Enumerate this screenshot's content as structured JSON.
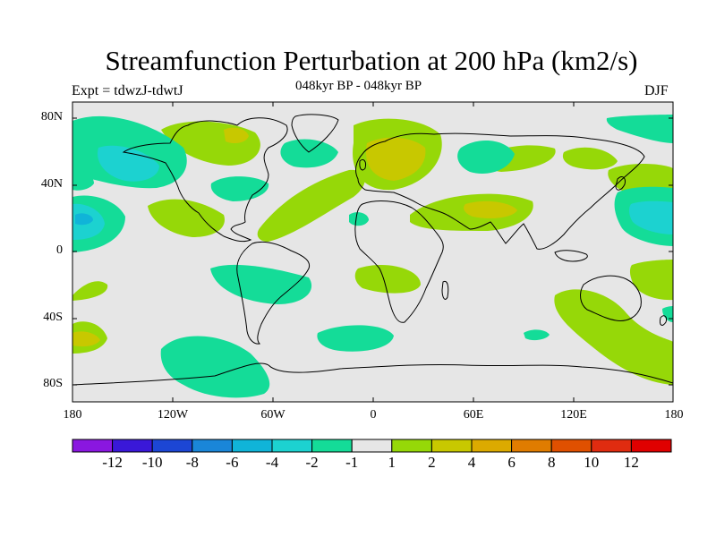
{
  "title": "Streamfunction Perturbation at 200 hPa (km2/s)",
  "experiment": "Expt = tdwzJ-tdwtJ",
  "subtitle": "048kyr BP - 048kyr BP",
  "season": "DJF",
  "lat_labels": [
    "80N",
    "40N",
    "0",
    "40S",
    "80S"
  ],
  "lon_labels": [
    "180",
    "120W",
    "60W",
    "0",
    "60E",
    "120E",
    "180"
  ],
  "colorbar": {
    "labels": [
      "-12",
      "-10",
      "-8",
      "-6",
      "-4",
      "-2",
      "-1",
      "1",
      "2",
      "4",
      "6",
      "8",
      "10",
      "12"
    ],
    "colors": [
      "#8a17e0",
      "#3a18d8",
      "#1c46d4",
      "#1a86d8",
      "#10b4d8",
      "#1cd2d0",
      "#14dc98",
      "#e6e6e6",
      "#96d808",
      "#c8c800",
      "#dcaa00",
      "#e07c00",
      "#e05000",
      "#e02c10",
      "#e00000"
    ]
  },
  "colors": {
    "background": "#e6e6e6",
    "coastline": "#000000"
  }
}
